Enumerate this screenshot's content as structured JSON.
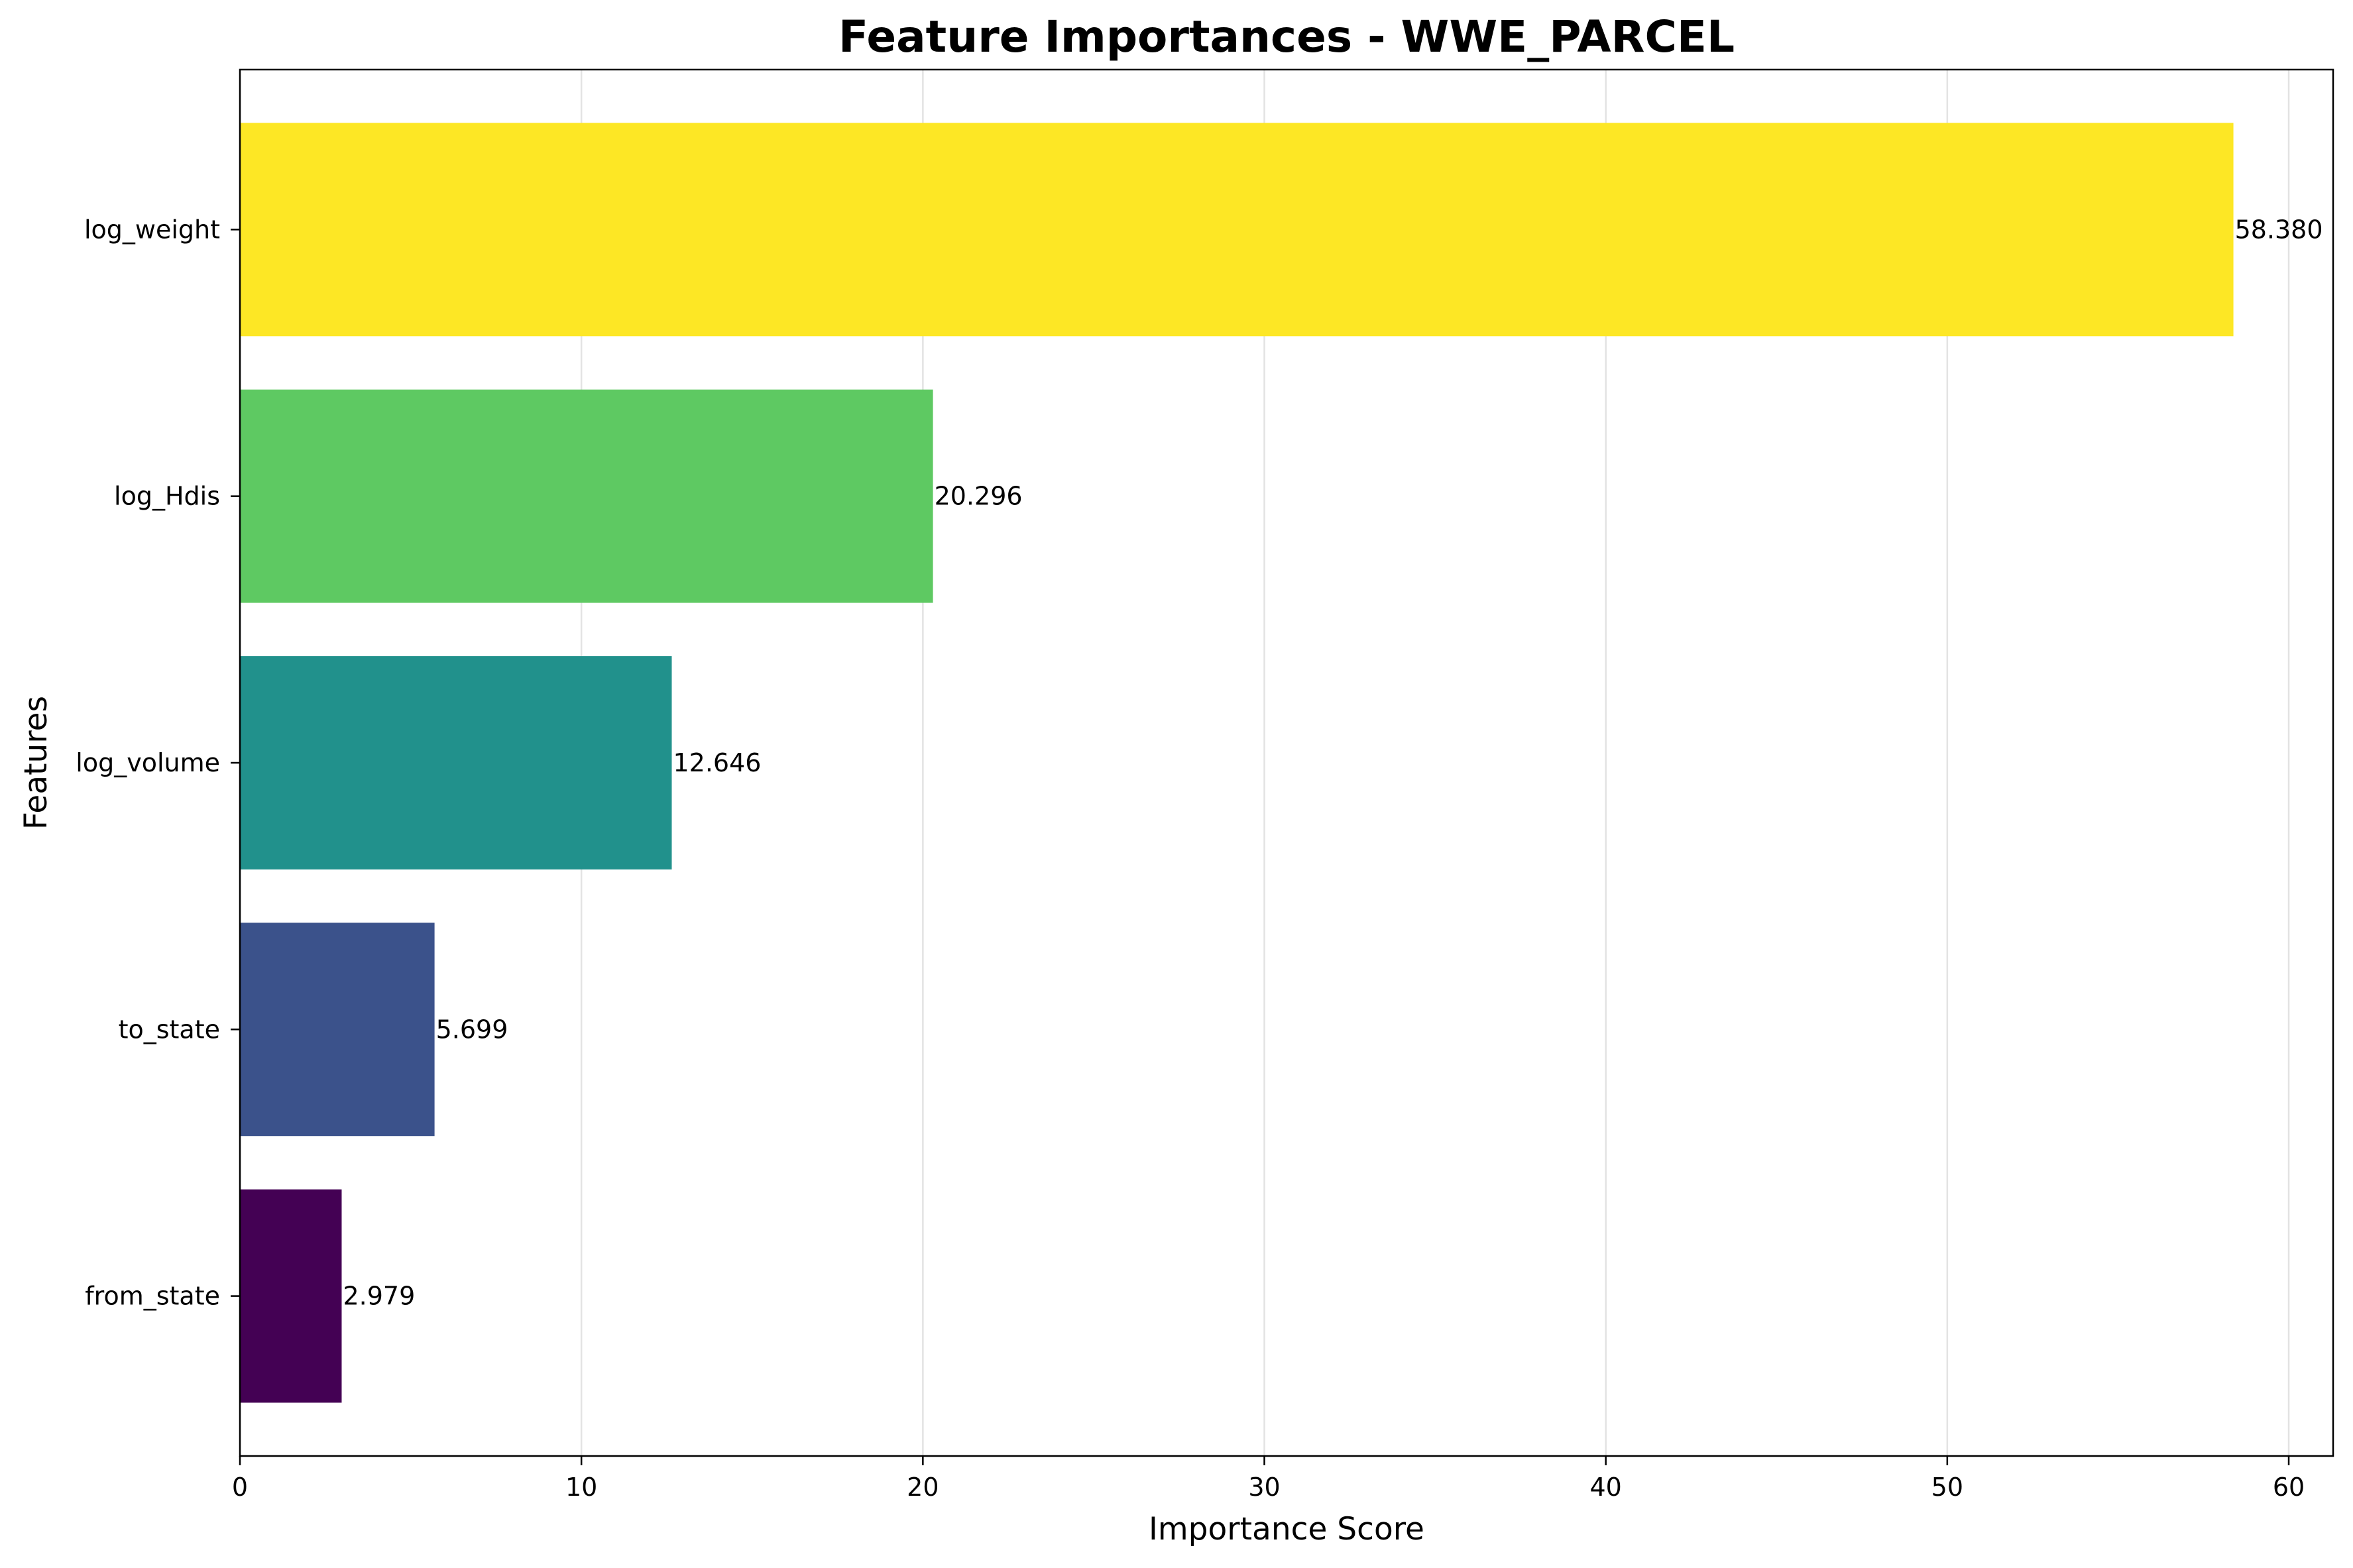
{
  "chart_data": {
    "type": "bar",
    "orientation": "horizontal",
    "title": "Feature Importances - WWE_PARCEL",
    "xlabel": "Importance Score",
    "ylabel": "Features",
    "categories": [
      "log_weight",
      "log_Hdis",
      "log_volume",
      "to_state",
      "from_state"
    ],
    "values": [
      58.38,
      20.296,
      12.646,
      5.699,
      2.979
    ],
    "value_labels": [
      "58.380",
      "20.296",
      "12.646",
      "5.699",
      "2.979"
    ],
    "colors": [
      "#fde725",
      "#5ec962",
      "#21918c",
      "#3b528b",
      "#440154"
    ],
    "xlim": [
      0,
      61.3
    ],
    "xticks": [
      0,
      10,
      20,
      30,
      40,
      50,
      60
    ],
    "xtick_labels": [
      "0",
      "10",
      "20",
      "30",
      "40",
      "50",
      "60"
    ],
    "grid": "x",
    "legend": "none"
  }
}
